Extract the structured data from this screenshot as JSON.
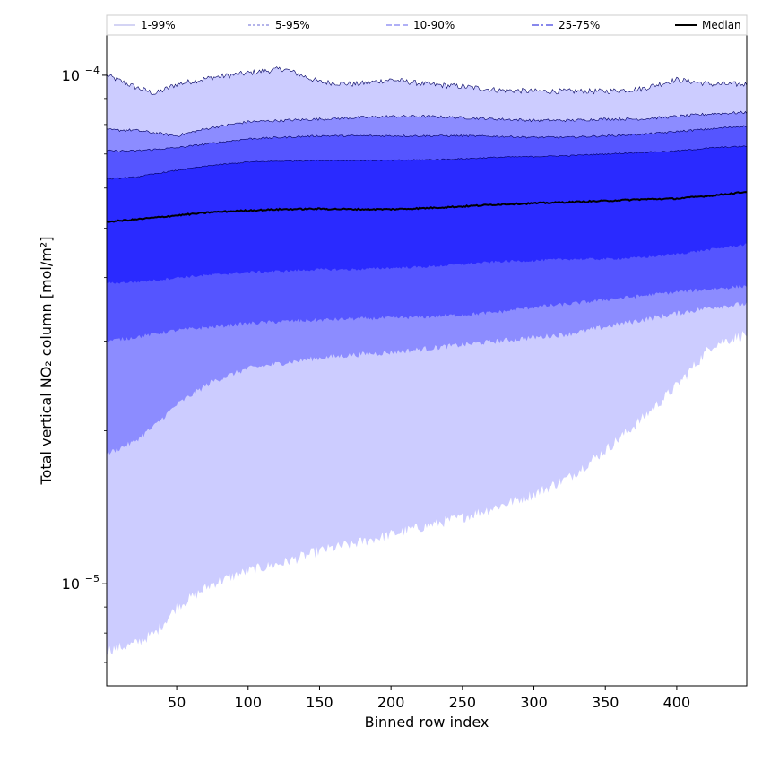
{
  "chart_data": {
    "type": "area",
    "xlabel": "Binned row index",
    "ylabel": "Total vertical NO₂ column [mol/m²]",
    "xlim": [
      1,
      449
    ],
    "ylim": [
      6.3e-06,
      0.00012
    ],
    "yscale": "log",
    "xticks": [
      50,
      100,
      150,
      200,
      250,
      300,
      350,
      400
    ],
    "yticks": [
      {
        "value": 1e-05,
        "base": "10",
        "exp": "−5"
      },
      {
        "value": 0.0001,
        "base": "10",
        "exp": "−4"
      }
    ],
    "legend_position": "top, above plot",
    "x": [
      1,
      20,
      35,
      50,
      75,
      100,
      125,
      150,
      175,
      200,
      225,
      250,
      275,
      300,
      325,
      350,
      375,
      400,
      425,
      449
    ],
    "series": [
      {
        "name": "1-99%",
        "color": "#ccccff",
        "lower": [
          7.4e-06,
          7.6e-06,
          8e-06,
          9e-06,
          1e-05,
          1.06e-05,
          1.1e-05,
          1.16e-05,
          1.2e-05,
          1.25e-05,
          1.3e-05,
          1.35e-05,
          1.42e-05,
          1.5e-05,
          1.62e-05,
          1.83e-05,
          2.1e-05,
          2.45e-05,
          2.95e-05,
          3.1e-05
        ],
        "upper": [
          0.0001,
          9.5e-05,
          9.2e-05,
          9.6e-05,
          9.9e-05,
          0.000101,
          0.000103,
          9.7e-05,
          9.6e-05,
          9.8e-05,
          9.6e-05,
          9.5e-05,
          9.35e-05,
          9.3e-05,
          9.3e-05,
          9.3e-05,
          9.4e-05,
          9.8e-05,
          9.6e-05,
          9.6e-05
        ]
      },
      {
        "name": "5-95%",
        "color": "#8c8cff",
        "lower": [
          1.8e-05,
          1.9e-05,
          2.05e-05,
          2.25e-05,
          2.5e-05,
          2.65e-05,
          2.72e-05,
          2.78e-05,
          2.82e-05,
          2.85e-05,
          2.9e-05,
          2.95e-05,
          3e-05,
          3.05e-05,
          3.1e-05,
          3.2e-05,
          3.3e-05,
          3.4e-05,
          3.5e-05,
          3.55e-05
        ],
        "upper": [
          7.8e-05,
          7.8e-05,
          7.7e-05,
          7.6e-05,
          7.9e-05,
          8.1e-05,
          8.15e-05,
          8.2e-05,
          8.25e-05,
          8.3e-05,
          8.3e-05,
          8.25e-05,
          8.2e-05,
          8.15e-05,
          8.15e-05,
          8.2e-05,
          8.2e-05,
          8.3e-05,
          8.4e-05,
          8.45e-05
        ]
      },
      {
        "name": "10-90%",
        "color": "#5555ff",
        "lower": [
          3e-05,
          3.05e-05,
          3.1e-05,
          3.15e-05,
          3.2e-05,
          3.25e-05,
          3.28e-05,
          3.3e-05,
          3.32e-05,
          3.33e-05,
          3.35e-05,
          3.38e-05,
          3.42e-05,
          3.5e-05,
          3.55e-05,
          3.62e-05,
          3.68e-05,
          3.75e-05,
          3.8e-05,
          3.85e-05
        ],
        "upper": [
          7.1e-05,
          7.1e-05,
          7.15e-05,
          7.2e-05,
          7.35e-05,
          7.5e-05,
          7.55e-05,
          7.6e-05,
          7.6e-05,
          7.6e-05,
          7.6e-05,
          7.6e-05,
          7.58e-05,
          7.55e-05,
          7.55e-05,
          7.6e-05,
          7.65e-05,
          7.75e-05,
          7.85e-05,
          7.95e-05
        ]
      },
      {
        "name": "25-75%",
        "color": "#2a2aff",
        "lower": [
          3.9e-05,
          3.92e-05,
          3.95e-05,
          4e-05,
          4.05e-05,
          4.1e-05,
          4.12e-05,
          4.15e-05,
          4.15e-05,
          4.18e-05,
          4.2e-05,
          4.25e-05,
          4.3e-05,
          4.32e-05,
          4.35e-05,
          4.35e-05,
          4.38e-05,
          4.45e-05,
          4.55e-05,
          4.65e-05
        ],
        "upper": [
          6.25e-05,
          6.3e-05,
          6.4e-05,
          6.5e-05,
          6.65e-05,
          6.75e-05,
          6.78e-05,
          6.8e-05,
          6.8e-05,
          6.8e-05,
          6.82e-05,
          6.85e-05,
          6.9e-05,
          6.92e-05,
          6.95e-05,
          7e-05,
          7.05e-05,
          7.1e-05,
          7.2e-05,
          7.25e-05
        ]
      },
      {
        "name": "Median",
        "color": "#000000",
        "values": [
          5.15e-05,
          5.2e-05,
          5.25e-05,
          5.3e-05,
          5.38e-05,
          5.42e-05,
          5.45e-05,
          5.46e-05,
          5.45e-05,
          5.45e-05,
          5.48e-05,
          5.52e-05,
          5.57e-05,
          5.6e-05,
          5.63e-05,
          5.66e-05,
          5.7e-05,
          5.72e-05,
          5.8e-05,
          5.9e-05
        ]
      }
    ],
    "legend": [
      {
        "label": "1-99%",
        "color": "#bbbbee",
        "dash": ""
      },
      {
        "label": "5-95%",
        "color": "#8888dd",
        "dash": "3,2"
      },
      {
        "label": "10-90%",
        "color": "#8080f0",
        "dash": "6,3"
      },
      {
        "label": "25-75%",
        "color": "#4040e0",
        "dash": "8,3,2,3"
      },
      {
        "label": "Median",
        "color": "#000000",
        "dash": ""
      }
    ]
  }
}
